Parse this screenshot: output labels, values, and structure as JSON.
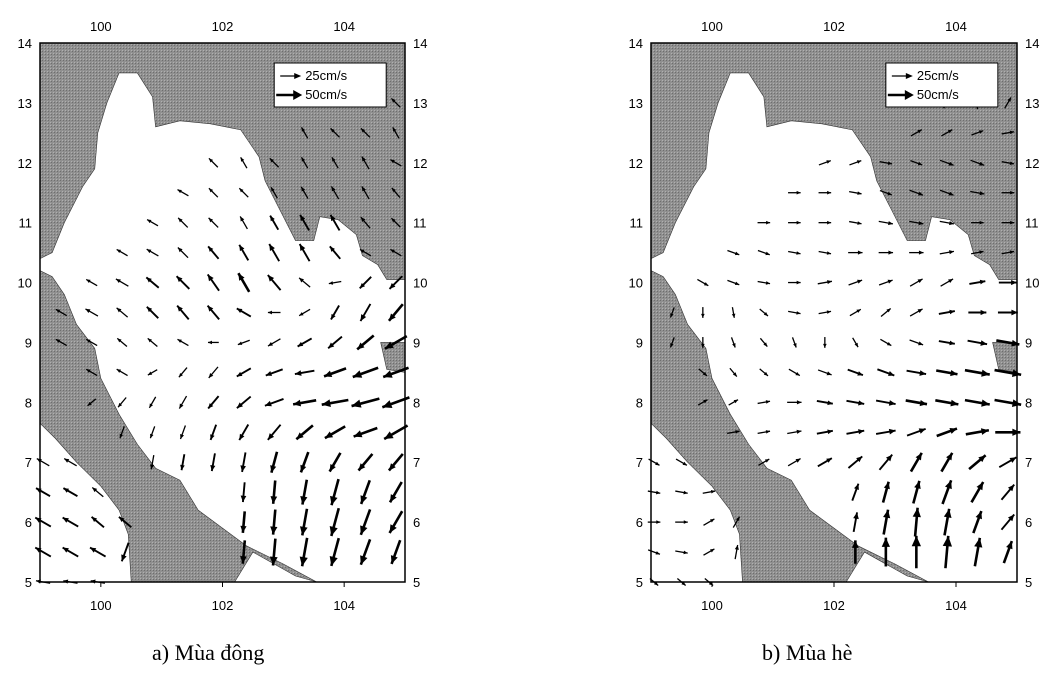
{
  "colors": {
    "land": "#8c8c8c",
    "sea": "#ffffff",
    "arrow": "#000000"
  },
  "axes": {
    "x_ticks": [
      100,
      102,
      104
    ],
    "y_ticks": [
      5,
      6,
      7,
      8,
      9,
      10,
      11,
      12,
      13,
      14
    ],
    "lon_range": [
      99,
      105
    ],
    "lat_range": [
      5,
      14
    ]
  },
  "legend": {
    "small_label": "25cm/s",
    "large_label": "50cm/s",
    "small_speed": 25,
    "large_speed": 50
  },
  "panels": [
    {
      "id": "winter",
      "caption": "a) Mùa đông",
      "rows": [
        {
          "lat": 13.0,
          "dirs": [
            315,
            315,
            315
          ],
          "speeds": [
            14,
            14,
            14
          ]
        },
        {
          "lat": 12.5,
          "dirs": [
            330,
            315,
            315,
            330
          ],
          "speeds": [
            14,
            14,
            14,
            14
          ]
        },
        {
          "lat": 12.0,
          "dirs": [
            315,
            330,
            315,
            330,
            330,
            330,
            300
          ],
          "speeds": [
            14,
            14,
            14,
            14,
            14,
            16,
            14
          ]
        },
        {
          "lat": 11.5,
          "dirs": [
            300,
            315,
            315,
            330,
            330,
            330,
            330,
            320
          ],
          "speeds": [
            14,
            14,
            14,
            14,
            15,
            16,
            16,
            14
          ]
        },
        {
          "lat": 11.0,
          "dirs": [
            300,
            315,
            315,
            330,
            330,
            330,
            330,
            320,
            315
          ],
          "speeds": [
            14,
            15,
            15,
            16,
            18,
            20,
            20,
            16,
            14
          ]
        },
        {
          "lat": 10.5,
          "dirs": [
            300,
            300,
            315,
            320,
            330,
            330,
            330,
            320,
            300,
            300
          ],
          "speeds": [
            14,
            15,
            16,
            18,
            20,
            22,
            22,
            18,
            14,
            14
          ]
        },
        {
          "lat": 10.0,
          "dirs": [
            300,
            300,
            310,
            315,
            325,
            330,
            320,
            310,
            260,
            225,
            225
          ],
          "speeds": [
            14,
            16,
            18,
            20,
            22,
            24,
            22,
            16,
            14,
            18,
            20
          ]
        },
        {
          "lat": 9.5,
          "dirs": [
            300,
            300,
            310,
            315,
            320,
            320,
            300,
            270,
            240,
            210,
            210,
            220
          ],
          "speeds": [
            14,
            16,
            16,
            18,
            20,
            20,
            18,
            14,
            14,
            18,
            22,
            24
          ]
        },
        {
          "lat": 9.0,
          "dirs": [
            300,
            300,
            310,
            310,
            300,
            270,
            250,
            240,
            240,
            230,
            230,
            240
          ],
          "speeds": [
            14,
            14,
            14,
            14,
            14,
            12,
            14,
            16,
            18,
            20,
            24,
            28
          ]
        },
        {
          "lat": 8.5,
          "dirs": [
            300,
            300,
            240,
            220,
            220,
            240,
            250,
            260,
            250,
            250,
            250
          ],
          "speeds": [
            14,
            14,
            12,
            14,
            16,
            18,
            20,
            22,
            26,
            30,
            30
          ]
        },
        {
          "lat": 8.0,
          "dirs": [
            230,
            220,
            210,
            210,
            220,
            230,
            250,
            260,
            260,
            255,
            250
          ],
          "speeds": [
            12,
            14,
            14,
            16,
            18,
            20,
            22,
            26,
            30,
            32,
            32
          ]
        },
        {
          "lat": 7.5,
          "dirs": [
            200,
            200,
            200,
            200,
            210,
            220,
            230,
            240,
            250,
            240
          ],
          "speeds": [
            14,
            14,
            16,
            18,
            20,
            22,
            24,
            26,
            28,
            30
          ]
        },
        {
          "lat": 7.0,
          "dirs": [
            190,
            190,
            190,
            190,
            195,
            200,
            210,
            220,
            220
          ],
          "speeds": [
            16,
            18,
            20,
            22,
            24,
            24,
            24,
            24,
            24
          ]
        },
        {
          "lat": 6.5,
          "dirs": [
            185,
            185,
            190,
            195,
            200,
            210
          ],
          "speeds": [
            22,
            26,
            28,
            30,
            28,
            26
          ]
        },
        {
          "lat": 6.0,
          "dirs": [
            185,
            185,
            190,
            195,
            200,
            210
          ],
          "speeds": [
            24,
            28,
            30,
            32,
            30,
            28
          ]
        },
        {
          "lat": 5.5,
          "dirs": [
            185,
            185,
            190,
            195,
            200,
            200
          ],
          "speeds": [
            26,
            30,
            32,
            32,
            30,
            28
          ]
        }
      ],
      "west_rows": [
        {
          "lat": 7.0,
          "dirs": [
            300,
            300
          ],
          "speeds": [
            16,
            16
          ]
        },
        {
          "lat": 6.5,
          "dirs": [
            300,
            300,
            310
          ],
          "speeds": [
            18,
            18,
            16
          ]
        },
        {
          "lat": 6.0,
          "dirs": [
            300,
            300,
            310,
            310
          ],
          "speeds": [
            20,
            20,
            18,
            18
          ]
        },
        {
          "lat": 5.5,
          "dirs": [
            300,
            300,
            300,
            200
          ],
          "speeds": [
            20,
            20,
            20,
            22
          ]
        },
        {
          "lat": 5.0,
          "dirs": [
            280,
            280,
            280
          ],
          "speeds": [
            16,
            16,
            16
          ]
        }
      ]
    },
    {
      "id": "summer",
      "caption": "b) Mùa hè",
      "rows": [
        {
          "lat": 13.0,
          "dirs": [
            30,
            0,
            30
          ],
          "speeds": [
            14,
            14,
            14
          ]
        },
        {
          "lat": 12.5,
          "dirs": [
            60,
            60,
            70,
            80
          ],
          "speeds": [
            14,
            14,
            14,
            14
          ]
        },
        {
          "lat": 12.0,
          "dirs": [
            70,
            70,
            100,
            110,
            110,
            110,
            100
          ],
          "speeds": [
            14,
            14,
            14,
            14,
            16,
            16,
            14
          ]
        },
        {
          "lat": 11.5,
          "dirs": [
            90,
            90,
            100,
            110,
            110,
            110,
            100,
            90
          ],
          "speeds": [
            14,
            14,
            14,
            14,
            16,
            16,
            16,
            14
          ]
        },
        {
          "lat": 11.0,
          "dirs": [
            90,
            90,
            90,
            100,
            100,
            100,
            100,
            90,
            90
          ],
          "speeds": [
            14,
            14,
            14,
            14,
            16,
            16,
            16,
            14,
            14
          ]
        },
        {
          "lat": 10.5,
          "dirs": [
            110,
            110,
            100,
            100,
            90,
            90,
            90,
            80,
            80,
            80
          ],
          "speeds": [
            14,
            14,
            14,
            14,
            16,
            16,
            16,
            16,
            14,
            14
          ]
        },
        {
          "lat": 10.0,
          "dirs": [
            120,
            110,
            100,
            90,
            80,
            70,
            70,
            60,
            60,
            80,
            90
          ],
          "speeds": [
            14,
            14,
            14,
            14,
            16,
            16,
            16,
            16,
            16,
            18,
            20
          ]
        },
        {
          "lat": 9.5,
          "dirs": [
            200,
            180,
            170,
            130,
            100,
            80,
            60,
            50,
            60,
            80,
            90,
            90
          ],
          "speeds": [
            12,
            12,
            12,
            12,
            14,
            14,
            14,
            14,
            16,
            18,
            20,
            22
          ]
        },
        {
          "lat": 9.0,
          "dirs": [
            200,
            180,
            160,
            140,
            160,
            180,
            150,
            120,
            110,
            100,
            100,
            100
          ],
          "speeds": [
            12,
            12,
            12,
            12,
            12,
            12,
            12,
            14,
            16,
            18,
            22,
            26
          ]
        },
        {
          "lat": 8.5,
          "dirs": [
            130,
            140,
            130,
            120,
            110,
            110,
            110,
            100,
            100,
            100,
            100
          ],
          "speeds": [
            12,
            12,
            12,
            14,
            16,
            18,
            20,
            22,
            24,
            28,
            30
          ]
        },
        {
          "lat": 8.0,
          "dirs": [
            60,
            60,
            80,
            90,
            100,
            100,
            100,
            100,
            100,
            100,
            100
          ],
          "speeds": [
            12,
            12,
            14,
            16,
            18,
            20,
            22,
            24,
            26,
            28,
            30
          ]
        },
        {
          "lat": 7.5,
          "dirs": [
            80,
            80,
            80,
            80,
            80,
            80,
            70,
            70,
            80,
            90
          ],
          "speeds": [
            14,
            14,
            16,
            18,
            20,
            22,
            22,
            24,
            26,
            28
          ]
        },
        {
          "lat": 7.0,
          "dirs": [
            60,
            60,
            60,
            50,
            40,
            30,
            30,
            50,
            60
          ],
          "speeds": [
            14,
            16,
            18,
            20,
            22,
            24,
            24,
            24,
            22
          ]
        },
        {
          "lat": 6.5,
          "dirs": [
            20,
            15,
            15,
            20,
            30,
            40
          ],
          "speeds": [
            20,
            24,
            26,
            28,
            26,
            22
          ]
        },
        {
          "lat": 6.0,
          "dirs": [
            10,
            10,
            5,
            10,
            20,
            40
          ],
          "speeds": [
            22,
            28,
            32,
            30,
            26,
            22
          ]
        },
        {
          "lat": 5.5,
          "dirs": [
            0,
            0,
            0,
            5,
            10,
            20
          ],
          "speeds": [
            26,
            32,
            36,
            36,
            32,
            26
          ]
        }
      ],
      "west_rows": [
        {
          "lat": 7.0,
          "dirs": [
            120,
            120
          ],
          "speeds": [
            14,
            14
          ]
        },
        {
          "lat": 6.5,
          "dirs": [
            100,
            100,
            80
          ],
          "speeds": [
            14,
            14,
            14
          ]
        },
        {
          "lat": 6.0,
          "dirs": [
            90,
            90,
            60,
            30
          ],
          "speeds": [
            14,
            14,
            14,
            14
          ]
        },
        {
          "lat": 5.5,
          "dirs": [
            110,
            100,
            60,
            10
          ],
          "speeds": [
            14,
            14,
            14,
            16
          ]
        },
        {
          "lat": 5.0,
          "dirs": [
            130,
            130,
            130
          ],
          "speeds": [
            12,
            12,
            12
          ]
        }
      ]
    }
  ]
}
